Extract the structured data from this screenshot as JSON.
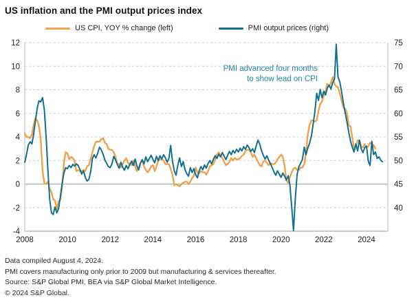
{
  "header": {
    "title": "US inflation and the PMI output prices index"
  },
  "chart_data": {
    "type": "line",
    "title": "US inflation and the PMI output prices index",
    "x_axis": {
      "min": 2008,
      "max": 2025,
      "ticks": [
        2008,
        2010,
        2012,
        2014,
        2016,
        2018,
        2020,
        2022,
        2024
      ]
    },
    "left_axis": {
      "min": -4,
      "max": 12,
      "ticks": [
        12,
        10,
        8,
        6,
        4,
        2,
        0,
        -2,
        -4
      ]
    },
    "right_axis": {
      "min": 40,
      "max": 75,
      "ticks": [
        75,
        70,
        65,
        60,
        55,
        50,
        45,
        40
      ]
    },
    "legend_position": "top",
    "grid": "dashed-horizontal",
    "annotation": {
      "line1": "PMI advanced four months",
      "line2": "to show lead on CPI",
      "color": "#2286A6"
    },
    "series": [
      {
        "name": "US CPI, YOY % change (left)",
        "axis": "left",
        "color": "#EFA14B",
        "start_year": 2008,
        "values": [
          4.3,
          4.0,
          4.0,
          3.9,
          4.2,
          5.0,
          5.6,
          5.4,
          4.9,
          3.7,
          1.1,
          0.1,
          0.0,
          0.2,
          -0.4,
          -0.7,
          -1.3,
          -1.4,
          -2.1,
          -1.5,
          -1.3,
          -0.2,
          1.8,
          2.7,
          2.6,
          2.1,
          2.3,
          2.2,
          2.0,
          1.1,
          1.2,
          1.1,
          1.1,
          1.2,
          1.1,
          1.5,
          1.6,
          2.1,
          2.7,
          3.2,
          3.6,
          3.6,
          3.6,
          3.8,
          3.9,
          3.5,
          3.4,
          3.0,
          2.9,
          2.9,
          2.7,
          2.3,
          1.7,
          1.7,
          1.4,
          1.7,
          2.0,
          2.2,
          1.8,
          1.7,
          1.6,
          2.0,
          1.5,
          1.1,
          1.4,
          1.8,
          2.0,
          1.5,
          1.2,
          1.0,
          1.2,
          1.5,
          1.6,
          1.1,
          1.5,
          2.0,
          2.1,
          2.1,
          2.0,
          1.7,
          1.7,
          1.7,
          1.3,
          0.8,
          -0.1,
          0.0,
          -0.1,
          -0.2,
          0.0,
          0.1,
          0.2,
          0.2,
          0.0,
          0.2,
          0.5,
          0.7,
          1.4,
          1.0,
          0.9,
          1.1,
          1.0,
          1.0,
          0.8,
          1.1,
          1.5,
          1.6,
          1.7,
          2.1,
          2.5,
          2.7,
          2.4,
          2.2,
          1.9,
          1.6,
          1.7,
          1.9,
          2.2,
          2.0,
          2.2,
          2.1,
          2.1,
          2.2,
          2.4,
          2.5,
          2.8,
          2.9,
          2.9,
          2.7,
          2.3,
          2.5,
          2.2,
          1.9,
          1.6,
          1.5,
          1.9,
          2.0,
          1.8,
          1.6,
          1.8,
          1.7,
          1.7,
          1.8,
          2.1,
          2.3,
          2.5,
          2.3,
          1.5,
          0.3,
          0.1,
          0.6,
          1.0,
          1.3,
          1.4,
          1.2,
          1.2,
          1.4,
          1.4,
          1.7,
          2.6,
          4.2,
          5.0,
          5.4,
          5.4,
          5.3,
          5.4,
          6.2,
          6.8,
          7.0,
          7.5,
          7.9,
          8.5,
          8.3,
          8.6,
          9.1,
          8.5,
          8.3,
          8.2,
          7.7,
          7.1,
          6.5,
          6.4,
          6.0,
          5.0,
          4.9,
          4.0,
          3.0,
          3.2,
          3.7,
          3.7,
          3.2,
          3.1,
          3.4,
          3.1,
          3.2,
          3.5,
          3.4,
          3.3,
          3.0
        ]
      },
      {
        "name": "PMI output prices (right)",
        "axis": "right",
        "color": "#136F8E",
        "start_year": 2008,
        "values": [
          52.8,
          54.3,
          56.0,
          56.6,
          56.2,
          58.0,
          60.5,
          62.8,
          64.2,
          64.0,
          64.8,
          62.5,
          57.5,
          51.5,
          46.0,
          43.4,
          43.1,
          44.5,
          43.4,
          44.2,
          46.5,
          48.9,
          50.8,
          51.8,
          51.6,
          52.2,
          51.8,
          52.4,
          52.1,
          52.5,
          52.2,
          51.5,
          50.6,
          51.2,
          50.0,
          49.3,
          49.6,
          51.0,
          53.5,
          54.2,
          53.6,
          54.5,
          55.6,
          55.1,
          54.3,
          53.2,
          52.6,
          52.0,
          51.8,
          52.5,
          53.9,
          53.2,
          52.4,
          51.7,
          52.8,
          51.9,
          51.3,
          52.2,
          51.6,
          52.4,
          53.0,
          52.2,
          53.4,
          52.1,
          51.4,
          52.6,
          53.3,
          52.5,
          53.8,
          52.9,
          53.5,
          54.1,
          53.3,
          52.7,
          53.9,
          53.1,
          54.0,
          53.4,
          54.2,
          53.6,
          52.8,
          53.5,
          55.9,
          53.0,
          51.2,
          50.4,
          52.3,
          53.6,
          52.0,
          52.9,
          51.5,
          50.7,
          50.2,
          51.8,
          50.9,
          51.6,
          50.5,
          49.9,
          51.2,
          52.0,
          51.4,
          52.3,
          51.7,
          52.6,
          53.1,
          52.5,
          53.4,
          54.0,
          53.5,
          54.3,
          53.8,
          54.6,
          53.9,
          53.3,
          54.1,
          54.8,
          54.2,
          55.0,
          54.5,
          55.2,
          54.7,
          55.4,
          54.9,
          55.7,
          55.2,
          56.0,
          55.5,
          54.8,
          55.3,
          54.6,
          55.8,
          56.9,
          56.2,
          55.0,
          54.1,
          53.4,
          54.0,
          53.2,
          52.5,
          51.8,
          51.0,
          50.4,
          51.2,
          50.6,
          50.0,
          50.8,
          50.2,
          49.5,
          50.3,
          48.5,
          44.5,
          40.1,
          46.0,
          50.5,
          52.0,
          52.6,
          53.4,
          55.6,
          54.2,
          55.4,
          56.3,
          57.6,
          59.8,
          62.2,
          65.6,
          64.3,
          66.3,
          64.8,
          66.0,
          65.3,
          66.6,
          67.1,
          66.4,
          67.6,
          68.2,
          74.7,
          68.6,
          67.7,
          65.9,
          63.8,
          62.0,
          60.3,
          58.4,
          56.8,
          55.6,
          54.7,
          56.2,
          54.9,
          56.9,
          55.3,
          54.6,
          55.5,
          55.8,
          53.0,
          52.2,
          56.7,
          54.2,
          54.7,
          53.5,
          53.8,
          53.2,
          52.9
        ]
      }
    ]
  },
  "footnotes": {
    "line1": "Data compiled August 4, 2024.",
    "line2": "PMI covers manufacturing only prior to 2009 but manufacturing & services thereafter.",
    "line3": "Source: S&P Global PMI, BEA via S&P Global Market Intelligence.",
    "line4": "© 2024 S&P Global."
  }
}
